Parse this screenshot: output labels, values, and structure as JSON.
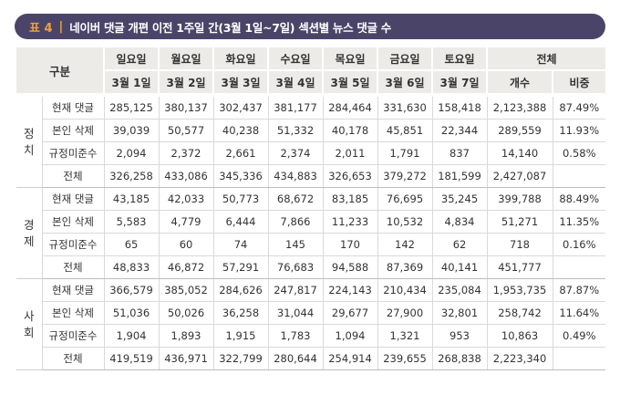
{
  "title": {
    "tag": "표 4",
    "separator": "|",
    "text": "네이버 댓글 개편 이전 1주일 간(3월 1일~7일) 섹션별 뉴스 댓글 수"
  },
  "header": {
    "group": "구분",
    "days": [
      "일요일",
      "월요일",
      "화요일",
      "수요일",
      "목요일",
      "금요일",
      "토요일"
    ],
    "dates": [
      "3월 1일",
      "3월 2일",
      "3월 3일",
      "3월 4일",
      "3월 5일",
      "3월 6일",
      "3월 7일"
    ],
    "total": "전체",
    "count": "개수",
    "ratio": "비중"
  },
  "sections": [
    {
      "name": "정치",
      "rows": [
        {
          "label": "현재 댓글",
          "values": [
            "285,125",
            "380,137",
            "302,437",
            "381,177",
            "284,464",
            "331,630",
            "158,418",
            "2,123,388"
          ],
          "ratio": "87.49%"
        },
        {
          "label": "본인 삭제",
          "values": [
            "39,039",
            "50,577",
            "40,238",
            "51,332",
            "40,178",
            "45,851",
            "22,344",
            "289,559"
          ],
          "ratio": "11.93%"
        },
        {
          "label": "규정미준수",
          "values": [
            "2,094",
            "2,372",
            "2,661",
            "2,374",
            "2,011",
            "1,791",
            "837",
            "14,140"
          ],
          "ratio": "0.58%"
        },
        {
          "label": "전체",
          "values": [
            "326,258",
            "433,086",
            "345,336",
            "434,883",
            "326,653",
            "379,272",
            "181,599",
            "2,427,087"
          ],
          "ratio": ""
        }
      ]
    },
    {
      "name": "경제",
      "rows": [
        {
          "label": "현재 댓글",
          "values": [
            "43,185",
            "42,033",
            "50,773",
            "68,672",
            "83,185",
            "76,695",
            "35,245",
            "399,788"
          ],
          "ratio": "88.49%"
        },
        {
          "label": "본인 삭제",
          "values": [
            "5,583",
            "4,779",
            "6,444",
            "7,866",
            "11,233",
            "10,532",
            "4,834",
            "51,271"
          ],
          "ratio": "11.35%"
        },
        {
          "label": "규정미준수",
          "values": [
            "65",
            "60",
            "74",
            "145",
            "170",
            "142",
            "62",
            "718"
          ],
          "ratio": "0.16%"
        },
        {
          "label": "전체",
          "values": [
            "48,833",
            "46,872",
            "57,291",
            "76,683",
            "94,588",
            "87,369",
            "40,141",
            "451,777"
          ],
          "ratio": ""
        }
      ]
    },
    {
      "name": "사회",
      "rows": [
        {
          "label": "현재 댓글",
          "values": [
            "366,579",
            "385,052",
            "284,626",
            "247,817",
            "224,143",
            "210,434",
            "235,084",
            "1,953,735"
          ],
          "ratio": "87.87%"
        },
        {
          "label": "본인 삭제",
          "values": [
            "51,036",
            "50,026",
            "36,258",
            "31,044",
            "29,677",
            "27,900",
            "32,801",
            "258,742"
          ],
          "ratio": "11.64%"
        },
        {
          "label": "규정미준수",
          "values": [
            "1,904",
            "1,893",
            "1,915",
            "1,783",
            "1,094",
            "1,321",
            "953",
            "10,863"
          ],
          "ratio": "0.49%"
        },
        {
          "label": "전체",
          "values": [
            "419,519",
            "436,971",
            "322,799",
            "280,644",
            "254,914",
            "239,655",
            "268,838",
            "2,223,340"
          ],
          "ratio": ""
        }
      ]
    }
  ]
}
